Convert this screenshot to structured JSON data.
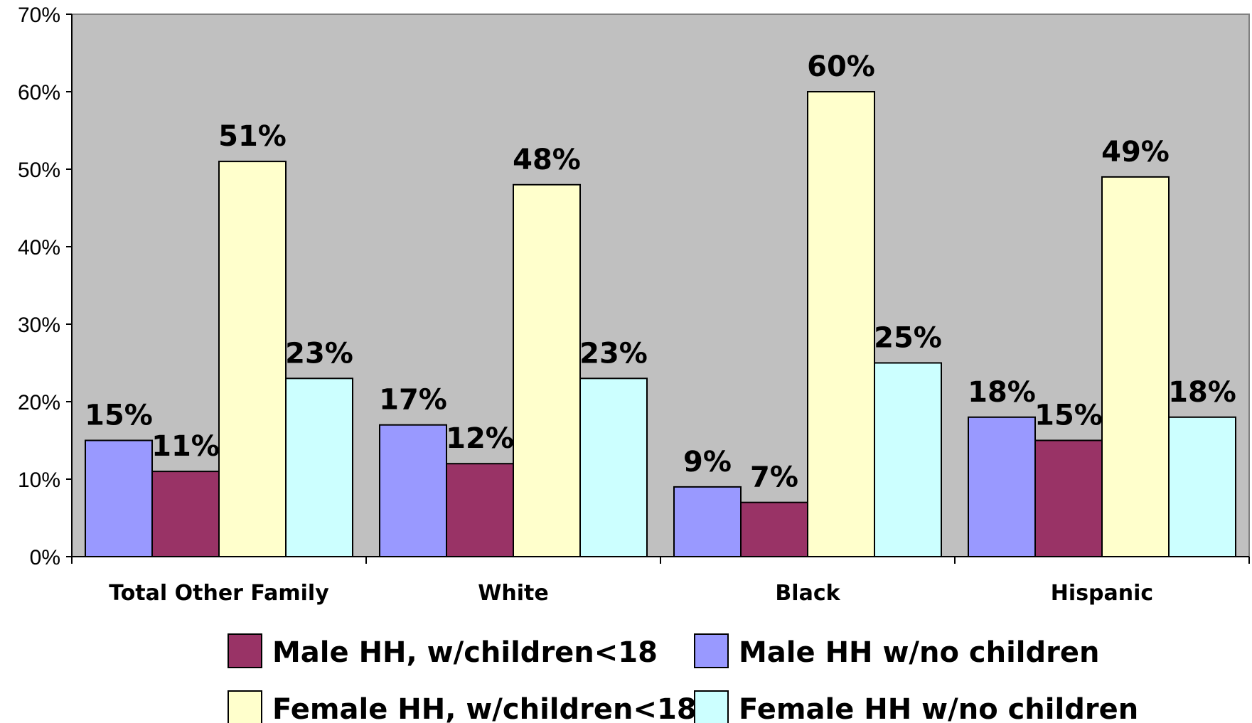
{
  "chart_data": {
    "type": "bar",
    "categories": [
      "Total Other Family",
      "White",
      "Black",
      "Hispanic"
    ],
    "series": [
      {
        "name": "Male HH w/no children",
        "color": "#9999FF",
        "values": [
          15,
          17,
          9,
          18
        ],
        "labels": [
          "15%",
          "17%",
          "9%",
          "18%"
        ]
      },
      {
        "name": "Male HH, w/children<18",
        "color": "#993366",
        "values": [
          11,
          12,
          7,
          15
        ],
        "labels": [
          "11%",
          "12%",
          "7%",
          "15%"
        ]
      },
      {
        "name": "Female HH, w/children<18",
        "color": "#FFFFCC",
        "values": [
          51,
          48,
          60,
          49
        ],
        "labels": [
          "51%",
          "48%",
          "60%",
          "49%"
        ]
      },
      {
        "name": "Female HH w/no children",
        "color": "#CCFFFF",
        "values": [
          23,
          23,
          25,
          18
        ],
        "labels": [
          "23%",
          "23%",
          "25%",
          "18%"
        ]
      }
    ],
    "ylim": [
      0,
      70
    ],
    "yticks": [
      "0%",
      "10%",
      "20%",
      "30%",
      "40%",
      "50%",
      "60%",
      "70%"
    ],
    "title": "",
    "xlabel": "",
    "ylabel": "",
    "plot_background": "#C0C0C0",
    "grid": false,
    "legend_position": "bottom",
    "legend_order": [
      "Male HH, w/children<18",
      "Male HH w/no children",
      "Female HH, w/children<18",
      "Female HH w/no children"
    ]
  }
}
